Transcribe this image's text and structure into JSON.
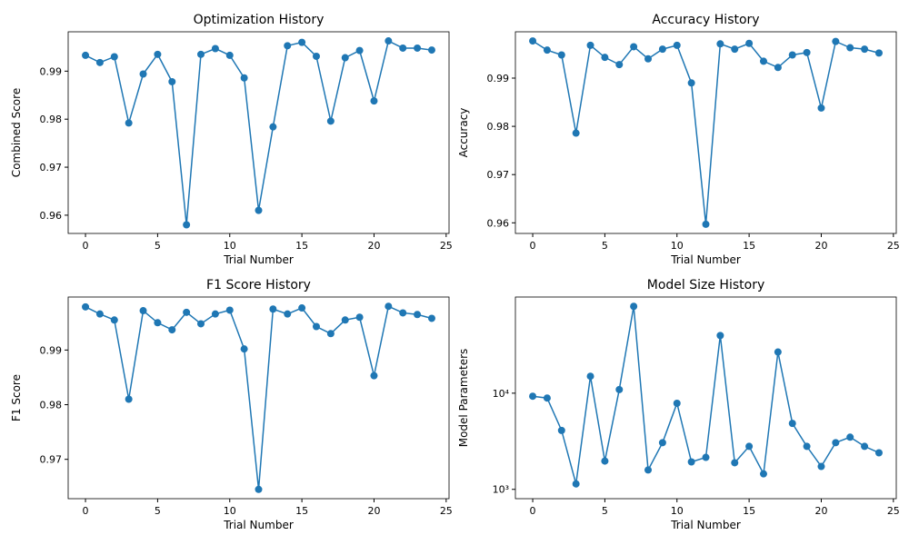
{
  "chart_data": [
    {
      "type": "line",
      "title": "Optimization History",
      "x_label": "Trial Number",
      "y_label": "Combined Score",
      "color": "#1f77b4",
      "x": [
        0,
        1,
        2,
        3,
        4,
        5,
        6,
        7,
        8,
        9,
        10,
        11,
        12,
        13,
        14,
        15,
        16,
        17,
        18,
        19,
        20,
        21,
        22,
        23,
        24
      ],
      "values": [
        0.9933,
        0.9918,
        0.993,
        0.9792,
        0.9894,
        0.9935,
        0.9878,
        0.958,
        0.9935,
        0.9947,
        0.9933,
        0.9886,
        0.961,
        0.9784,
        0.9953,
        0.996,
        0.9931,
        0.9796,
        0.9928,
        0.9943,
        0.9838,
        0.9963,
        0.9948,
        0.9948,
        0.9944
      ],
      "xlim": [
        -1.2,
        25.2
      ],
      "xticks": [
        0,
        5,
        10,
        15,
        20,
        25
      ],
      "ylim": [
        0.9562,
        0.9982
      ],
      "yticks": [
        0.96,
        0.97,
        0.98,
        0.99
      ]
    },
    {
      "type": "line",
      "title": "Accuracy History",
      "x_label": "Trial Number",
      "y_label": "Accuracy",
      "color": "#1f77b4",
      "x": [
        0,
        1,
        2,
        3,
        4,
        5,
        6,
        7,
        8,
        9,
        10,
        11,
        12,
        13,
        14,
        15,
        16,
        17,
        18,
        19,
        20,
        21,
        22,
        23,
        24
      ],
      "values": [
        0.9977,
        0.9958,
        0.9948,
        0.9786,
        0.9968,
        0.9943,
        0.9928,
        0.9965,
        0.994,
        0.996,
        0.9968,
        0.989,
        0.9597,
        0.9971,
        0.996,
        0.9972,
        0.9935,
        0.9922,
        0.9948,
        0.9953,
        0.9838,
        0.9976,
        0.9963,
        0.996,
        0.9952
      ],
      "xlim": [
        -1.2,
        25.2
      ],
      "xticks": [
        0,
        5,
        10,
        15,
        20,
        25
      ],
      "ylim": [
        0.9578,
        0.9996
      ],
      "yticks": [
        0.96,
        0.97,
        0.98,
        0.99
      ]
    },
    {
      "type": "line",
      "title": "F1 Score History",
      "x_label": "Trial Number",
      "y_label": "F1 Score",
      "color": "#1f77b4",
      "x": [
        0,
        1,
        2,
        3,
        4,
        5,
        6,
        7,
        8,
        9,
        10,
        11,
        12,
        13,
        14,
        15,
        16,
        17,
        18,
        19,
        20,
        21,
        22,
        23,
        24
      ],
      "values": [
        0.9979,
        0.9966,
        0.9955,
        0.981,
        0.9972,
        0.995,
        0.9937,
        0.9969,
        0.9948,
        0.9966,
        0.9973,
        0.9902,
        0.9645,
        0.9975,
        0.9966,
        0.9977,
        0.9943,
        0.993,
        0.9955,
        0.996,
        0.9853,
        0.998,
        0.9968,
        0.9965,
        0.9958
      ],
      "xlim": [
        -1.2,
        25.2
      ],
      "xticks": [
        0,
        5,
        10,
        15,
        20,
        25
      ],
      "ylim": [
        0.9628,
        0.9997
      ],
      "yticks": [
        0.97,
        0.98,
        0.99
      ]
    },
    {
      "type": "line",
      "title": "Model Size History",
      "x_label": "Trial Number",
      "y_label": "Model Parameters",
      "color": "#1f77b4",
      "log_y": true,
      "x": [
        0,
        1,
        2,
        3,
        4,
        5,
        6,
        7,
        8,
        9,
        10,
        11,
        12,
        13,
        14,
        15,
        16,
        17,
        18,
        19,
        20,
        21,
        22,
        23,
        24
      ],
      "values": [
        9300,
        8900,
        4100,
        1140,
        15000,
        1970,
        10900,
        80000,
        1590,
        3060,
        7850,
        1930,
        2150,
        39800,
        1890,
        2800,
        1450,
        26800,
        4850,
        2800,
        1730,
        3060,
        3490,
        2800,
        2400
      ],
      "xlim": [
        -1.2,
        25.2
      ],
      "xticks": [
        0,
        5,
        10,
        15,
        20,
        25
      ],
      "ylim": [
        800,
        100000
      ],
      "yticks": [
        {
          "value": 1000,
          "label": "10³"
        },
        {
          "value": 10000,
          "label": "10⁴"
        }
      ]
    }
  ]
}
